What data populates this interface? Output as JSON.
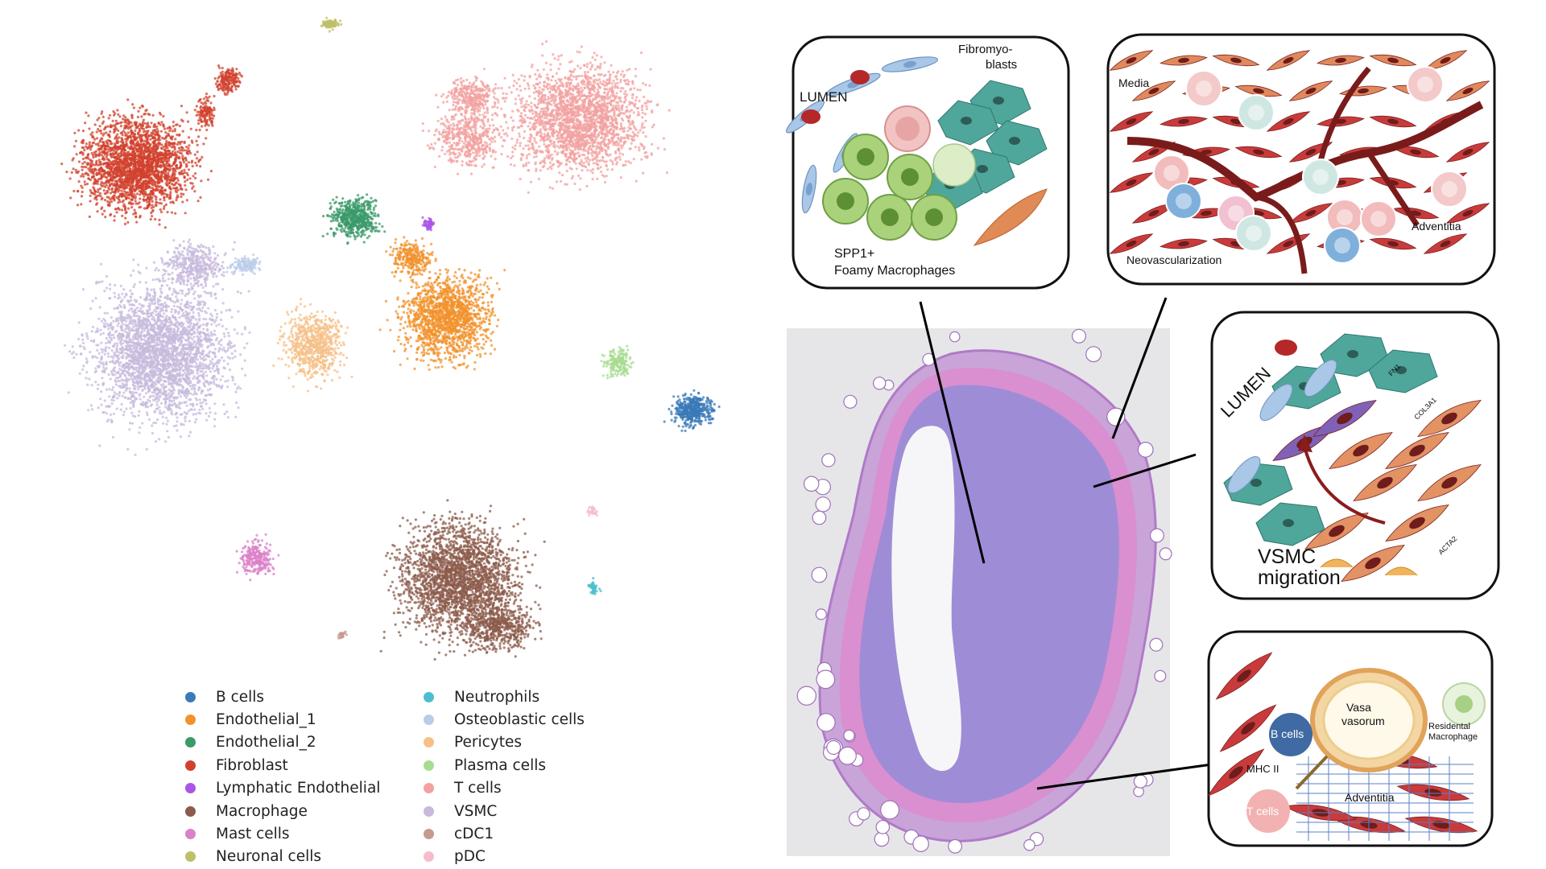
{
  "umap": {
    "clusters": [
      {
        "name": "B cells",
        "color": "#3a7ab8"
      },
      {
        "name": "Endothelial_1",
        "color": "#f2922b"
      },
      {
        "name": "Endothelial_2",
        "color": "#3a9a6a"
      },
      {
        "name": "Fibroblast",
        "color": "#d1412e"
      },
      {
        "name": "Lymphatic Endothelial",
        "color": "#a855e8"
      },
      {
        "name": "Macrophage",
        "color": "#8c5b4b"
      },
      {
        "name": "Mast cells",
        "color": "#dc80c8"
      },
      {
        "name": "Neuronal cells",
        "color": "#bdbf6a"
      },
      {
        "name": "Neutrophils",
        "color": "#4bbfcf"
      },
      {
        "name": "Osteoblastic cells",
        "color": "#b9cce8"
      },
      {
        "name": "Pericytes",
        "color": "#f6c088"
      },
      {
        "name": "Plasma cells",
        "color": "#a8dc92"
      },
      {
        "name": "T cells",
        "color": "#f2a2a0"
      },
      {
        "name": "VSMC",
        "color": "#c7b9dc"
      },
      {
        "name": "cDC1",
        "color": "#c59a8f"
      },
      {
        "name": "pDC",
        "color": "#f5bccb"
      }
    ]
  },
  "panels": {
    "foam": {
      "lumen": "LUMEN",
      "fibro_line1": "Fibromyo-",
      "fibro_line2": "blasts",
      "spp1_line1": "SPP1+",
      "spp1_line2": "Foamy Macrophages"
    },
    "neovasc": {
      "media": "Media",
      "neovascularization": "Neovascularization",
      "adventitia": "Adventitia"
    },
    "migration": {
      "lumen": "LUMEN",
      "fn1": "FN1",
      "col3a1": "COL3A1",
      "acta2": "ACTA2",
      "vsmc": "VSMC",
      "migration": "migration"
    },
    "vasa": {
      "vasa_line1": "Vasa",
      "vasa_line2": "vasorum",
      "b_cells": "B cells",
      "mhc": "MHC II",
      "t_cells": "T cells",
      "adventitia": "Adventitia",
      "resident_line1": "Residental",
      "resident_line2": "Macrophage"
    }
  }
}
